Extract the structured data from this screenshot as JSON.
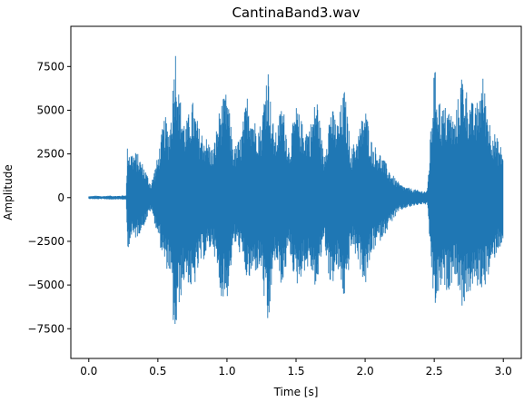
{
  "chart_data": {
    "type": "line",
    "title": "CantinaBand3.wav",
    "xlabel": "Time [s]",
    "ylabel": "Amplitude",
    "xlim": [
      -0.13,
      3.13
    ],
    "ylim": [
      -9200,
      9800
    ],
    "x_ticks": [
      {
        "value": 0.0,
        "label": "0.0"
      },
      {
        "value": 0.5,
        "label": "0.5"
      },
      {
        "value": 1.0,
        "label": "1.0"
      },
      {
        "value": 1.5,
        "label": "1.5"
      },
      {
        "value": 2.0,
        "label": "2.0"
      },
      {
        "value": 2.5,
        "label": "2.5"
      },
      {
        "value": 3.0,
        "label": "3.0"
      }
    ],
    "y_ticks": [
      {
        "value": -7500,
        "label": "−7500"
      },
      {
        "value": -5000,
        "label": "−5000"
      },
      {
        "value": -2500,
        "label": "−2500"
      },
      {
        "value": 0,
        "label": "0"
      },
      {
        "value": 2500,
        "label": "2500"
      },
      {
        "value": 5000,
        "label": "5000"
      },
      {
        "value": 7500,
        "label": "7500"
      }
    ],
    "grid": false,
    "series": [
      {
        "name": "waveform",
        "color": "#1f77b4",
        "envelope": {
          "time_s": [
            0.0,
            0.05,
            0.1,
            0.15,
            0.2,
            0.25,
            0.27,
            0.28,
            0.3,
            0.35,
            0.4,
            0.45,
            0.5,
            0.55,
            0.58,
            0.6,
            0.62,
            0.63,
            0.65,
            0.7,
            0.75,
            0.8,
            0.85,
            0.9,
            0.95,
            1.0,
            1.05,
            1.1,
            1.15,
            1.2,
            1.25,
            1.28,
            1.3,
            1.32,
            1.35,
            1.4,
            1.45,
            1.5,
            1.55,
            1.6,
            1.65,
            1.7,
            1.75,
            1.8,
            1.85,
            1.88,
            1.9,
            1.95,
            2.0,
            2.05,
            2.1,
            2.15,
            2.2,
            2.25,
            2.3,
            2.35,
            2.4,
            2.45,
            2.47,
            2.5,
            2.55,
            2.6,
            2.65,
            2.7,
            2.75,
            2.8,
            2.85,
            2.9,
            2.95,
            3.0
          ],
          "upper": [
            80,
            110,
            90,
            120,
            100,
            130,
            150,
            3100,
            2700,
            2600,
            1800,
            800,
            2400,
            4800,
            3800,
            5500,
            8200,
            9000,
            6200,
            4200,
            5600,
            4000,
            3500,
            2800,
            5300,
            6100,
            2800,
            3600,
            6100,
            4500,
            4200,
            7200,
            7600,
            5000,
            3600,
            5600,
            3000,
            5300,
            4200,
            4100,
            6000,
            2400,
            5400,
            4300,
            6300,
            4100,
            2800,
            3800,
            5300,
            3200,
            2700,
            2000,
            1300,
            800,
            600,
            500,
            400,
            400,
            3200,
            7600,
            5200,
            5300,
            4500,
            7300,
            5800,
            5200,
            7100,
            4500,
            3500,
            2700
          ],
          "lower": [
            -80,
            -100,
            -90,
            -110,
            -100,
            -120,
            -140,
            -3000,
            -2500,
            -2300,
            -1600,
            -700,
            -2200,
            -4000,
            -4200,
            -5700,
            -8500,
            -8200,
            -6300,
            -4500,
            -5600,
            -4000,
            -3300,
            -2800,
            -5600,
            -5900,
            -2600,
            -3300,
            -5000,
            -4300,
            -4200,
            -7000,
            -8100,
            -5300,
            -3600,
            -5300,
            -3000,
            -5200,
            -4300,
            -4000,
            -5500,
            -2300,
            -5300,
            -4200,
            -6000,
            -4200,
            -2800,
            -3700,
            -5200,
            -3200,
            -2600,
            -2000,
            -1300,
            -800,
            -600,
            -500,
            -400,
            -400,
            -3000,
            -6600,
            -5200,
            -5400,
            -4400,
            -6300,
            -5600,
            -5100,
            -5300,
            -4500,
            -3200,
            -2600
          ]
        }
      }
    ]
  }
}
